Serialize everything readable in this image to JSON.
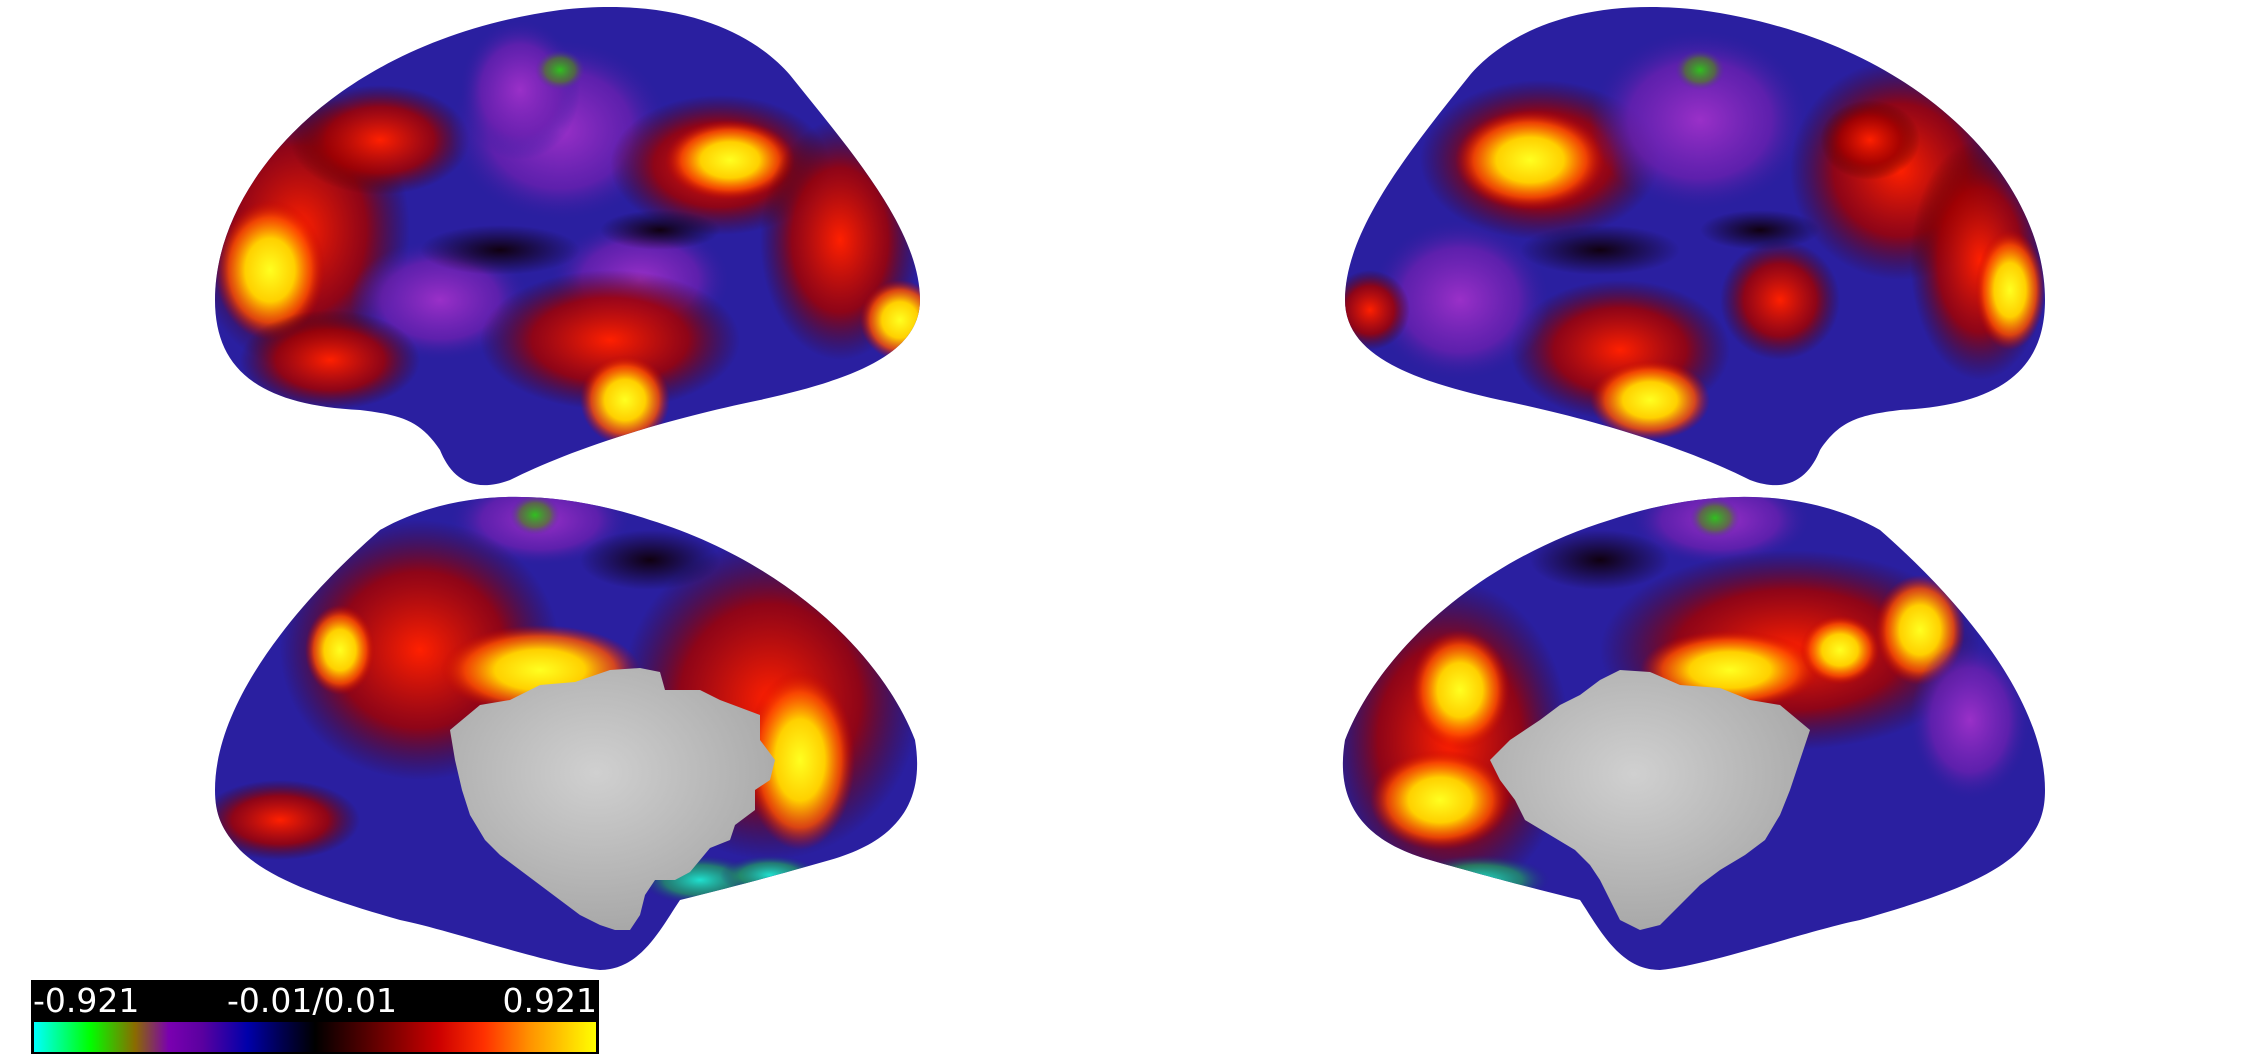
{
  "colorbar": {
    "min_label": "-0.921",
    "mid_label": "-0.01/0.01",
    "max_label": "0.921",
    "stops": [
      "#00ffff",
      "#00ff00",
      "#7a00b0",
      "#0000aa",
      "#000000",
      "#8a0000",
      "#ff3000",
      "#ffff00"
    ]
  },
  "views": [
    "left-lateral",
    "right-lateral",
    "left-medial",
    "right-medial"
  ],
  "colors": {
    "medial_wall": "#c4c4c4",
    "background": "#ffffff"
  }
}
